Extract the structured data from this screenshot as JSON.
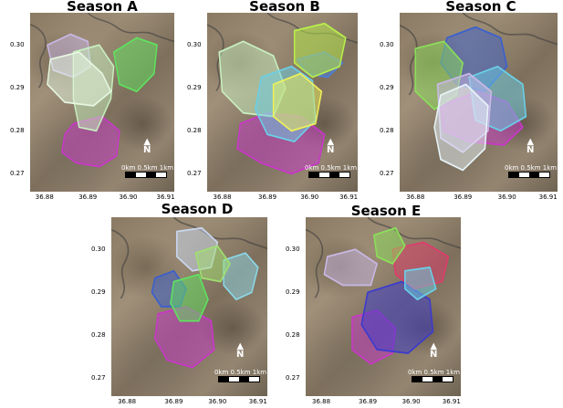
{
  "panels": [
    {
      "title": "Season A",
      "y_ticks": [
        "0.30",
        "0.29",
        "0.28",
        "0.27"
      ],
      "x_ticks": [
        "36.88",
        "36.89",
        "36.90",
        "36.91"
      ],
      "north_label": "N",
      "scale_label": "0km 0.5km 1km",
      "zones": [
        {
          "color": "#c837c8",
          "shape": "a_magenta"
        },
        {
          "color": "#c9b8e6",
          "shape": "a_lavender"
        },
        {
          "color": "#5fe35f",
          "shape": "a_green"
        },
        {
          "color": "#c8f0c0",
          "shape": "a_pale1"
        },
        {
          "color": "#e6f7e0",
          "shape": "a_pale2"
        }
      ]
    },
    {
      "title": "Season B",
      "y_ticks": [
        "0.30",
        "0.29",
        "0.28",
        "0.27"
      ],
      "x_ticks": [
        "36.88",
        "36.89",
        "36.90",
        "36.91"
      ],
      "north_label": "N",
      "scale_label": "0km 0.5km 1km",
      "zones": [
        {
          "color": "#c837c8",
          "shape": "b_magenta"
        },
        {
          "color": "#4a7fe0",
          "shape": "b_blue"
        },
        {
          "color": "#b8f04a",
          "shape": "b_lime"
        },
        {
          "color": "#c8f0c0",
          "shape": "b_pale"
        },
        {
          "color": "#6ad0e8",
          "shape": "b_cyan"
        },
        {
          "color": "#f0f05a",
          "shape": "b_yellow"
        }
      ]
    },
    {
      "title": "Season C",
      "y_ticks": [
        "0.30",
        "0.29",
        "0.28",
        "0.27"
      ],
      "x_ticks": [
        "36.88",
        "36.89",
        "36.90",
        "36.91"
      ],
      "north_label": "N",
      "scale_label": "0km 0.5km 1km",
      "zones": [
        {
          "color": "#c837c8",
          "shape": "c_magenta"
        },
        {
          "color": "#3a5fd0",
          "shape": "c_blue"
        },
        {
          "color": "#6ad0e8",
          "shape": "c_cyan"
        },
        {
          "color": "#8be05a",
          "shape": "c_green"
        },
        {
          "color": "#c9b8e6",
          "shape": "c_lavender"
        },
        {
          "color": "#e8f4f8",
          "shape": "c_white"
        }
      ]
    },
    {
      "title": "Season D",
      "y_ticks": [
        "0.30",
        "0.29",
        "0.28",
        "0.27"
      ],
      "x_ticks": [
        "36.88",
        "36.89",
        "36.90",
        "36.91"
      ],
      "north_label": "N",
      "scale_label": "0km 0.5km 1km",
      "zones": [
        {
          "color": "#c837c8",
          "shape": "d_magenta"
        },
        {
          "color": "#3a5fd0",
          "shape": "d_blue"
        },
        {
          "color": "#5fe35f",
          "shape": "d_green"
        },
        {
          "color": "#8bd8e8",
          "shape": "d_cyan"
        },
        {
          "color": "#c9d8f0",
          "shape": "d_paleblue"
        },
        {
          "color": "#a0e070",
          "shape": "d_lime"
        }
      ]
    },
    {
      "title": "Season E",
      "y_ticks": [
        "0.30",
        "0.29",
        "0.28",
        "0.27"
      ],
      "x_ticks": [
        "36.88",
        "36.89",
        "36.90",
        "36.91"
      ],
      "north_label": "N",
      "scale_label": "0km 0.5km 1km",
      "zones": [
        {
          "color": "#c837c8",
          "shape": "e_magenta"
        },
        {
          "color": "#3a3ad0",
          "shape": "e_blue"
        },
        {
          "color": "#e03a6a",
          "shape": "e_red"
        },
        {
          "color": "#8be05a",
          "shape": "e_green"
        },
        {
          "color": "#c9b8e6",
          "shape": "e_lavender"
        },
        {
          "color": "#6ad0e8",
          "shape": "e_cyan"
        }
      ]
    }
  ]
}
